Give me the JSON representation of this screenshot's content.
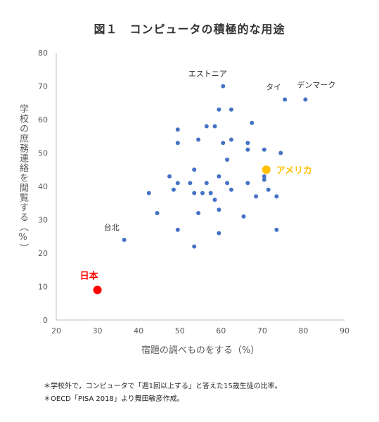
{
  "chart_data": {
    "type": "scatter",
    "title": "図１　コンピュータの積極的な用途",
    "xlabel": "宿題の調べものをする（%）",
    "ylabel": "学校の庶務連絡を閲覧する（%）",
    "xlim": [
      20,
      90
    ],
    "ylim": [
      0,
      80
    ],
    "xticks": [
      "20",
      "30",
      "40",
      "50",
      "60",
      "70",
      "80",
      "90"
    ],
    "yticks": [
      "0",
      "10",
      "20",
      "30",
      "40",
      "50",
      "60",
      "70",
      "80"
    ],
    "grid": false,
    "colors": {
      "default": "#4472C4",
      "japan": "#FF0000",
      "usa": "#FFC000"
    },
    "points": [
      {
        "x": 60.5,
        "y": 70
      },
      {
        "x": 75.5,
        "y": 66
      },
      {
        "x": 80.5,
        "y": 66
      },
      {
        "x": 59.5,
        "y": 63
      },
      {
        "x": 62.5,
        "y": 63
      },
      {
        "x": 67.5,
        "y": 59
      },
      {
        "x": 56.5,
        "y": 58
      },
      {
        "x": 58.5,
        "y": 58
      },
      {
        "x": 49.5,
        "y": 57
      },
      {
        "x": 54.5,
        "y": 54
      },
      {
        "x": 62.5,
        "y": 54
      },
      {
        "x": 49.5,
        "y": 53
      },
      {
        "x": 60.5,
        "y": 53
      },
      {
        "x": 66.5,
        "y": 53
      },
      {
        "x": 66.5,
        "y": 51
      },
      {
        "x": 70.5,
        "y": 51
      },
      {
        "x": 74.5,
        "y": 50
      },
      {
        "x": 61.5,
        "y": 48
      },
      {
        "x": 53.5,
        "y": 45
      },
      {
        "x": 70.5,
        "y": 43
      },
      {
        "x": 47.5,
        "y": 43
      },
      {
        "x": 59.5,
        "y": 43
      },
      {
        "x": 70.5,
        "y": 42
      },
      {
        "x": 49.5,
        "y": 41
      },
      {
        "x": 52.5,
        "y": 41
      },
      {
        "x": 56.5,
        "y": 41
      },
      {
        "x": 61.5,
        "y": 41
      },
      {
        "x": 66.5,
        "y": 41
      },
      {
        "x": 48.5,
        "y": 39
      },
      {
        "x": 62.5,
        "y": 39
      },
      {
        "x": 71.5,
        "y": 39
      },
      {
        "x": 42.5,
        "y": 38
      },
      {
        "x": 53.5,
        "y": 38
      },
      {
        "x": 55.5,
        "y": 38
      },
      {
        "x": 57.5,
        "y": 38
      },
      {
        "x": 68.5,
        "y": 37
      },
      {
        "x": 73.5,
        "y": 37
      },
      {
        "x": 58.5,
        "y": 36
      },
      {
        "x": 59.5,
        "y": 33
      },
      {
        "x": 44.5,
        "y": 32
      },
      {
        "x": 54.5,
        "y": 32
      },
      {
        "x": 65.5,
        "y": 31
      },
      {
        "x": 49.5,
        "y": 27
      },
      {
        "x": 73.5,
        "y": 27
      },
      {
        "x": 59.5,
        "y": 26
      },
      {
        "x": 36.5,
        "y": 24
      },
      {
        "x": 53.5,
        "y": 22
      }
    ],
    "highlights": [
      {
        "label": "日本",
        "x": 30,
        "y": 9,
        "color": "#FF0000"
      },
      {
        "label": "アメリカ",
        "x": 71,
        "y": 45,
        "color": "#FFC000"
      }
    ],
    "annotations": [
      {
        "text": "エストニア",
        "x": 60.5,
        "y": 70
      },
      {
        "text": "タイ",
        "x": 75.5,
        "y": 66
      },
      {
        "text": "デンマーク",
        "x": 80.5,
        "y": 66
      },
      {
        "text": "台北",
        "x": 36.5,
        "y": 24
      }
    ]
  },
  "notes": [
    "＊学校外で，コンピュータで「週1回以上する」と答えた15歳生徒の比率。",
    "＊OECD「PISA 2018」より舞田敏彦作成。"
  ]
}
